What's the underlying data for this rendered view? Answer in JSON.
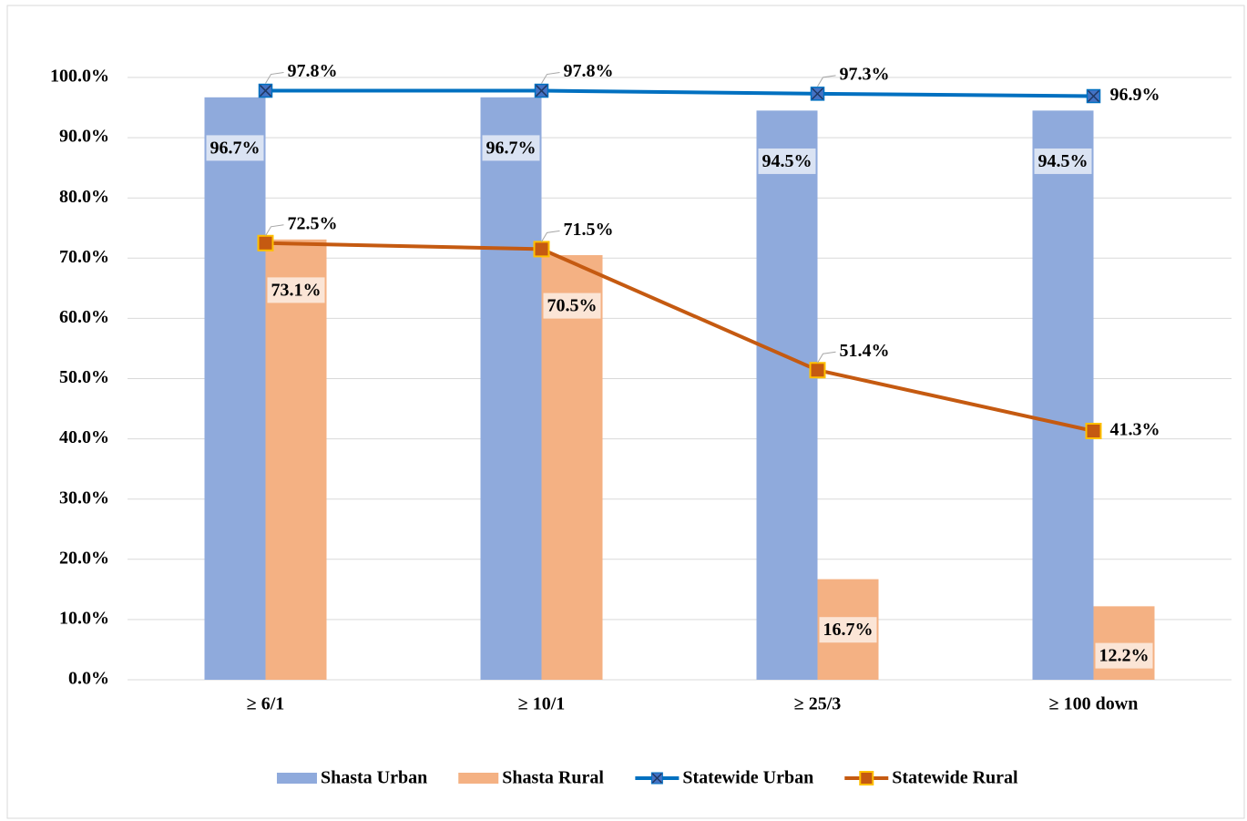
{
  "chart_data": {
    "type": "bar",
    "categories": [
      "≥ 6/1",
      "≥ 10/1",
      "≥ 25/3",
      "≥ 100 down"
    ],
    "series": [
      {
        "name": "Shasta Urban",
        "type": "bar",
        "color": "#8faadc",
        "values": [
          96.7,
          96.7,
          94.5,
          94.5
        ],
        "value_labels": [
          "96.7%",
          "96.7%",
          "94.5%",
          "94.5%"
        ]
      },
      {
        "name": "Shasta Rural",
        "type": "bar",
        "color": "#f4b183",
        "values": [
          73.1,
          70.5,
          16.7,
          12.2
        ],
        "value_labels": [
          "73.1%",
          "70.5%",
          "16.7%",
          "12.2%"
        ]
      },
      {
        "name": "Statewide Urban",
        "type": "line",
        "color": "#0070c0",
        "marker": "x",
        "values": [
          97.8,
          97.8,
          97.3,
          96.9
        ],
        "value_labels": [
          "97.8%",
          "97.8%",
          "97.3%",
          "96.9%"
        ]
      },
      {
        "name": "Statewide Rural",
        "type": "line",
        "color": "#c55a11",
        "marker": "square",
        "values": [
          72.5,
          71.5,
          51.4,
          41.3
        ],
        "value_labels": [
          "72.5%",
          "71.5%",
          "51.4%",
          "41.3%"
        ]
      }
    ],
    "ylim": [
      0,
      100
    ],
    "yticks": [
      {
        "value": 0,
        "label": "0.0%"
      },
      {
        "value": 10,
        "label": "10.0%"
      },
      {
        "value": 20,
        "label": "20.0%"
      },
      {
        "value": 30,
        "label": "30.0%"
      },
      {
        "value": 40,
        "label": "40.0%"
      },
      {
        "value": 50,
        "label": "50.0%"
      },
      {
        "value": 60,
        "label": "60.0%"
      },
      {
        "value": 70,
        "label": "70.0%"
      },
      {
        "value": 80,
        "label": "80.0%"
      },
      {
        "value": 90,
        "label": "90.0%"
      },
      {
        "value": 100,
        "label": "100.0%"
      }
    ],
    "grid": true,
    "legend": "bottom"
  }
}
